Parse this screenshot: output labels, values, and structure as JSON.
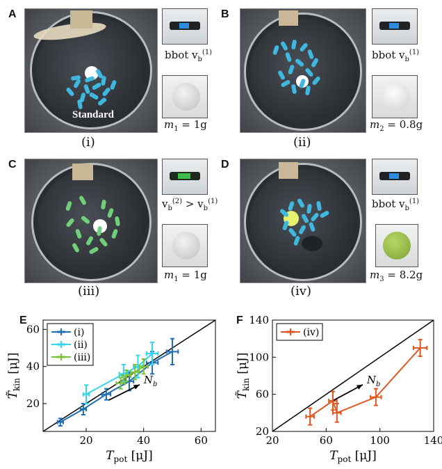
{
  "panels": {
    "A": {
      "letter": "A",
      "roman": "(i)",
      "photo_text": "Standard",
      "bot_caption": "bbot v",
      "bot_sub": "b",
      "bot_sup": "(1)",
      "ball_caption": "m",
      "ball_sub": "1",
      "ball_eq": " = 1g",
      "bug_color": "#3fb8e0",
      "ball_color": "#ffffff"
    },
    "B": {
      "letter": "B",
      "roman": "(ii)",
      "bot_caption": "bbot v",
      "bot_sub": "b",
      "bot_sup": "(1)",
      "ball_caption": "m",
      "ball_sub": "2",
      "ball_eq": " = 0.8g",
      "bug_color": "#3fb8e0",
      "ball_color": "#ffffff"
    },
    "C": {
      "letter": "C",
      "roman": "(iii)",
      "bot_caption_a": "v",
      "bot_sub_a": "b",
      "bot_sup_a": "(2)",
      "bot_gt": " > v",
      "bot_sub_b": "b",
      "bot_sup_b": "(1)",
      "ball_caption": "m",
      "ball_sub": "1",
      "ball_eq": " = 1g",
      "bug_color": "#6fcf7a",
      "ball_color": "#ffffff"
    },
    "D": {
      "letter": "D",
      "roman": "(iv)",
      "bot_caption": "bbot v",
      "bot_sub": "b",
      "bot_sup": "(1)",
      "ball_caption": "m",
      "ball_sub": "3",
      "ball_eq": " = 8.2g",
      "bug_color": "#3fb8e0",
      "ball_color": "#e6f06a"
    }
  },
  "chart_data": [
    {
      "panel": "E",
      "type": "line",
      "xlabel_main": "T",
      "xlabel_sub": "pot",
      "xlabel_unit": " [μJ]",
      "ylabel_main": "T̃",
      "ylabel_sub": "kin",
      "ylabel_unit": " [μJ]",
      "xlim": [
        5,
        65
      ],
      "ylim": [
        5,
        65
      ],
      "xticks": [
        20,
        40,
        60
      ],
      "yticks": [
        20,
        40,
        60
      ],
      "annotation": "N",
      "annotation_sub": "b",
      "identity_line": true,
      "legend_position": "top-left",
      "series": [
        {
          "name": "(i)",
          "color": "#1f6fb5",
          "x": [
            11,
            19,
            27,
            35,
            43,
            50
          ],
          "y": [
            10,
            17,
            25,
            32,
            42,
            48
          ],
          "xerr": [
            1,
            1,
            1.5,
            1.5,
            2,
            2
          ],
          "yerr": [
            2,
            3,
            3,
            5,
            6,
            7
          ]
        },
        {
          "name": "(ii)",
          "color": "#2fd6f0",
          "x": [
            20,
            33,
            38,
            43
          ],
          "y": [
            25,
            36,
            40,
            47
          ],
          "xerr": [
            1,
            1.5,
            1.5,
            2
          ],
          "yerr": [
            5,
            5,
            6,
            6
          ]
        },
        {
          "name": "(iii)",
          "color": "#7bbf3a",
          "x": [
            32,
            34,
            37,
            40
          ],
          "y": [
            31,
            35,
            37,
            40
          ],
          "xerr": [
            1.5,
            1.5,
            1.5,
            1.5
          ],
          "yerr": [
            3,
            3,
            4,
            4
          ]
        }
      ]
    },
    {
      "panel": "F",
      "type": "line",
      "xlabel_main": "T",
      "xlabel_sub": "pot",
      "xlabel_unit": " [μJ]",
      "ylabel_main": "T̃",
      "ylabel_sub": "kin",
      "ylabel_unit": " [μJ]",
      "xlim": [
        20,
        140
      ],
      "ylim": [
        20,
        140
      ],
      "xticks": [
        20,
        60,
        100,
        140
      ],
      "yticks": [
        20,
        60,
        100,
        140
      ],
      "annotation": "N",
      "annotation_sub": "b",
      "identity_line": true,
      "legend_position": "top-left",
      "series": [
        {
          "name": "(iv)",
          "color": "#e0581f",
          "x": [
            48,
            65,
            68,
            97,
            130
          ],
          "y": [
            36,
            53,
            40,
            57,
            110
          ],
          "xerr": [
            3,
            3,
            3,
            4,
            5
          ],
          "yerr": [
            9,
            10,
            10,
            9,
            9
          ]
        }
      ]
    }
  ]
}
